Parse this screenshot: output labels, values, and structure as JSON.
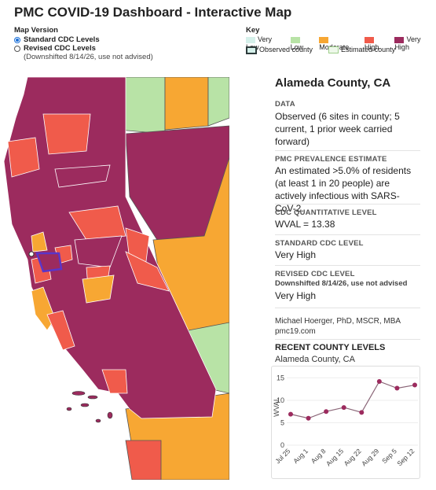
{
  "header": {
    "title": "PMC COVID-19 Dashboard - Interactive Map"
  },
  "map_version": {
    "label": "Map Version",
    "options": [
      {
        "label": "Standard CDC Levels",
        "selected": true
      },
      {
        "label": "Revised CDC Levels",
        "note": "(Downshifted 8/14/26, use not advised)",
        "selected": false
      }
    ]
  },
  "key": {
    "label": "Key",
    "items": [
      {
        "label": "Very Low",
        "color": "#d5f0ea"
      },
      {
        "label": "Low",
        "color": "#b8e3a6"
      },
      {
        "label": "Moderate",
        "color": "#f7a733"
      },
      {
        "label": "High",
        "color": "#f05b4b"
      },
      {
        "label": "Very High",
        "color": "#9c2b5e"
      }
    ],
    "observed": "Observed county",
    "estimated": "Estimated county"
  },
  "panel": {
    "county": "Alameda County, CA",
    "data_label": "DATA",
    "data_text": "Observed (6 sites in county; 5 current, 1 prior week carried forward)",
    "prev_label": "PMC PREVALENCE ESTIMATE",
    "prev_text": "An estimated >5.0% of residents (at least 1 in 20 people) are actively infectious with SARS-CoV-2.",
    "quant_label": "CDC QUANTITATIVE LEVEL",
    "quant_text": "WVAL = 13.38",
    "std_label": "STANDARD CDC LEVEL",
    "std_text": "Very High",
    "rev_label": "REVISED CDC LEVEL",
    "rev_note": "Downshifted 8/14/26, use not advised",
    "rev_text": "Very High",
    "author": "Michael Hoerger, PhD, MSCR, MBA",
    "site": "pmc19.com",
    "recent_label": "RECENT COUNTY LEVELS",
    "recent_county": "Alameda County, CA"
  },
  "chart_data": {
    "type": "line",
    "y_label": "WVAL",
    "categories": [
      "Jul 25",
      "Aug 1",
      "Aug 8",
      "Aug 15",
      "Aug 22",
      "Aug 29",
      "Sep 5",
      "Sep 12"
    ],
    "series": [
      {
        "name": "WVAL",
        "color": "#9c2b5e",
        "values": [
          6.9,
          6.0,
          7.5,
          8.4,
          7.3,
          14.2,
          12.7,
          13.4
        ]
      }
    ],
    "ylim": [
      0,
      17
    ],
    "yticks": [
      0,
      5,
      10,
      15
    ],
    "grid": true
  }
}
